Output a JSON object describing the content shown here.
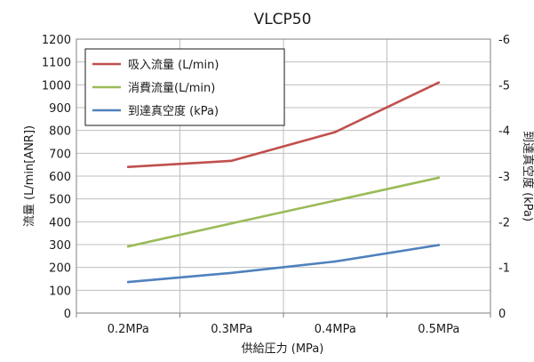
{
  "chart_data": {
    "type": "line",
    "title": "VLCP50",
    "xlabel": "供給圧力 (MPa)",
    "ylabel": "流量 (L/min[ANR])",
    "y2label": "到達真空度 (kPa)",
    "categories": [
      "0.2MPa",
      "0.3MPa",
      "0.4MPa",
      "0.5MPa"
    ],
    "ylim": [
      0,
      1200
    ],
    "yticks": [
      0,
      100,
      200,
      300,
      400,
      500,
      600,
      700,
      800,
      900,
      1000,
      1100,
      1200
    ],
    "y2lim": [
      0,
      -6
    ],
    "y2ticks": [
      0,
      -1,
      -2,
      -3,
      -4,
      -5,
      -6
    ],
    "grid": true,
    "legend_position": "top-left",
    "series": [
      {
        "name": "吸入流量 (L/min)",
        "axis": "left",
        "color": "#c0504d",
        "values": [
          640,
          667,
          793,
          1010
        ]
      },
      {
        "name": "消費流量(L/min)",
        "axis": "left",
        "color": "#9bbb59",
        "values": [
          292,
          393,
          493,
          593
        ]
      },
      {
        "name": "到達真空度 (kPa)",
        "axis": "right",
        "color": "#4f81bd",
        "values": [
          -0.68,
          -0.88,
          -1.13,
          -1.49
        ]
      }
    ]
  }
}
